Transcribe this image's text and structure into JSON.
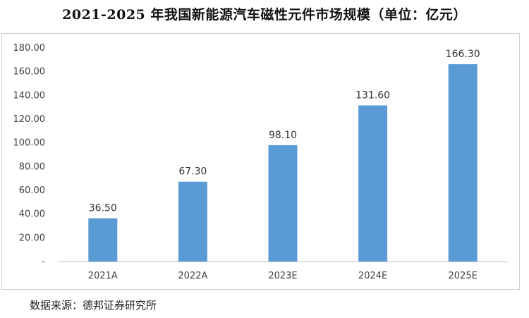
{
  "title": "2021-2025 年我国新能源汽车磁性元件市场规模（单位：亿元）",
  "source": "数据来源：德邦证券研究所",
  "colors": {
    "bar": "#5b9bd5",
    "axis": "#bfbfbf"
  },
  "chart_data": {
    "type": "bar",
    "title": "2021-2025 年我国新能源汽车磁性元件市场规模（单位：亿元）",
    "categories": [
      "2021A",
      "2022A",
      "2023E",
      "2024E",
      "2025E"
    ],
    "values": [
      36.5,
      67.3,
      98.1,
      131.6,
      166.3
    ],
    "value_labels": [
      "36.50",
      "67.30",
      "98.10",
      "131.60",
      "166.30"
    ],
    "ylim": [
      0,
      180
    ],
    "y_ticks": [
      0,
      20,
      40,
      60,
      80,
      100,
      120,
      140,
      160,
      180
    ],
    "y_tick_labels": [
      "-",
      "20.00",
      "40.00",
      "60.00",
      "80.00",
      "100.00",
      "120.00",
      "140.00",
      "160.00",
      "180.00"
    ],
    "xlabel": "",
    "ylabel": "",
    "grid": false,
    "legend": "none"
  }
}
